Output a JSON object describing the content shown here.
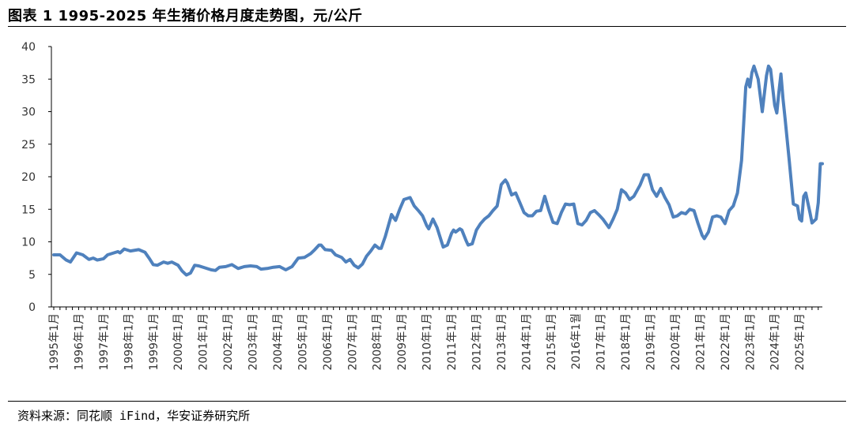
{
  "header": {
    "title": "图表 1 1995-2025 年生猪价格月度走势图，元/公斤"
  },
  "footer": {
    "source": "资料来源：同花顺 iFind，华安证券研究所"
  },
  "chart_data": {
    "type": "line",
    "title": "图表 1 1995-2025 年生猪价格月度走势图，元/公斤",
    "xlabel": "",
    "ylabel": "",
    "ylim": [
      0,
      40
    ],
    "yticks": [
      0,
      5,
      10,
      15,
      20,
      25,
      30,
      35,
      40
    ],
    "xticks": [
      "1995年1月",
      "1996年1月",
      "1997年1月",
      "1998年1月",
      "1999年1月",
      "2000年1月",
      "2001年1月",
      "2002年1月",
      "2003年1月",
      "2004年1月",
      "2005年1月",
      "2006年1月",
      "2007年1月",
      "2008年1月",
      "2009年1月",
      "2010年1月",
      "2011年1月",
      "2012年1月",
      "2013年1月",
      "2014年1月",
      "2015年1月",
      "2016年1월",
      "2017年1月",
      "2018年1月",
      "2019年1月",
      "2020年1月",
      "2021年1月",
      "2022年1月",
      "2023年1月",
      "2024年1月",
      "2025年1月"
    ],
    "xrange": [
      "1995-01",
      "2025-12"
    ],
    "grid": false,
    "legend": "none",
    "color": "#4f81bd",
    "series": [
      {
        "points": [
          [
            "1995-01",
            8.0
          ],
          [
            "1995-04",
            8.0
          ],
          [
            "1995-07",
            7.2
          ],
          [
            "1995-09",
            6.9
          ],
          [
            "1995-12",
            8.3
          ],
          [
            "1996-03",
            8.0
          ],
          [
            "1996-06",
            7.3
          ],
          [
            "1996-08",
            7.5
          ],
          [
            "1996-10",
            7.2
          ],
          [
            "1997-01",
            7.4
          ],
          [
            "1997-03",
            8.0
          ],
          [
            "1997-06",
            8.3
          ],
          [
            "1997-08",
            8.5
          ],
          [
            "1997-09",
            8.3
          ],
          [
            "1997-11",
            8.9
          ],
          [
            "1998-02",
            8.6
          ],
          [
            "1998-06",
            8.8
          ],
          [
            "1998-09",
            8.4
          ],
          [
            "1998-11",
            7.5
          ],
          [
            "1999-01",
            6.5
          ],
          [
            "1999-03",
            6.4
          ],
          [
            "1999-06",
            6.9
          ],
          [
            "1999-08",
            6.7
          ],
          [
            "1999-10",
            6.9
          ],
          [
            "2000-01",
            6.4
          ],
          [
            "2000-03",
            5.5
          ],
          [
            "2000-05",
            4.9
          ],
          [
            "2000-07",
            5.2
          ],
          [
            "2000-09",
            6.4
          ],
          [
            "2000-11",
            6.3
          ],
          [
            "2001-02",
            6.0
          ],
          [
            "2001-05",
            5.7
          ],
          [
            "2001-07",
            5.6
          ],
          [
            "2001-09",
            6.1
          ],
          [
            "2001-12",
            6.2
          ],
          [
            "2002-03",
            6.5
          ],
          [
            "2002-06",
            5.9
          ],
          [
            "2002-09",
            6.2
          ],
          [
            "2002-12",
            6.3
          ],
          [
            "2003-03",
            6.2
          ],
          [
            "2003-05",
            5.8
          ],
          [
            "2003-08",
            5.9
          ],
          [
            "2003-11",
            6.1
          ],
          [
            "2004-02",
            6.2
          ],
          [
            "2004-05",
            5.7
          ],
          [
            "2004-08",
            6.2
          ],
          [
            "2004-11",
            7.5
          ],
          [
            "2005-02",
            7.6
          ],
          [
            "2005-05",
            8.2
          ],
          [
            "2005-07",
            8.8
          ],
          [
            "2005-09",
            9.5
          ],
          [
            "2005-10",
            9.5
          ],
          [
            "2005-12",
            8.8
          ],
          [
            "2006-03",
            8.7
          ],
          [
            "2006-05",
            8.0
          ],
          [
            "2006-08",
            7.6
          ],
          [
            "2006-10",
            6.9
          ],
          [
            "2006-12",
            7.3
          ],
          [
            "2007-02",
            6.4
          ],
          [
            "2007-04",
            6.0
          ],
          [
            "2007-06",
            6.6
          ],
          [
            "2007-08",
            7.8
          ],
          [
            "2007-10",
            8.6
          ],
          [
            "2007-12",
            9.5
          ],
          [
            "2008-02",
            9.0
          ],
          [
            "2008-03",
            9.0
          ],
          [
            "2008-05",
            10.8
          ],
          [
            "2008-08",
            14.2
          ],
          [
            "2008-10",
            13.3
          ],
          [
            "2008-12",
            15.0
          ],
          [
            "2009-02",
            16.5
          ],
          [
            "2009-05",
            16.8
          ],
          [
            "2009-07",
            15.5
          ],
          [
            "2009-09",
            14.8
          ],
          [
            "2009-11",
            14.0
          ],
          [
            "2010-01",
            12.5
          ],
          [
            "2010-02",
            12.0
          ],
          [
            "2010-04",
            13.5
          ],
          [
            "2010-06",
            12.2
          ],
          [
            "2010-08",
            10.2
          ],
          [
            "2010-09",
            9.2
          ],
          [
            "2010-11",
            9.5
          ],
          [
            "2011-01",
            11.3
          ],
          [
            "2011-02",
            11.8
          ],
          [
            "2011-03",
            11.5
          ],
          [
            "2011-05",
            12.0
          ],
          [
            "2011-06",
            11.8
          ],
          [
            "2011-08",
            10.2
          ],
          [
            "2011-09",
            9.5
          ],
          [
            "2011-11",
            9.7
          ],
          [
            "2012-01",
            11.8
          ],
          [
            "2012-03",
            12.8
          ],
          [
            "2012-05",
            13.5
          ],
          [
            "2012-07",
            14.0
          ],
          [
            "2012-09",
            14.8
          ],
          [
            "2012-11",
            15.5
          ],
          [
            "2013-01",
            18.8
          ],
          [
            "2013-03",
            19.5
          ],
          [
            "2013-04",
            19.0
          ],
          [
            "2013-06",
            17.2
          ],
          [
            "2013-08",
            17.5
          ],
          [
            "2013-10",
            16.0
          ],
          [
            "2013-12",
            14.5
          ],
          [
            "2014-02",
            14.0
          ],
          [
            "2014-04",
            14.0
          ],
          [
            "2014-06",
            14.7
          ],
          [
            "2014-08",
            14.8
          ],
          [
            "2014-10",
            17.0
          ],
          [
            "2014-12",
            14.8
          ],
          [
            "2015-02",
            13.0
          ],
          [
            "2015-04",
            12.8
          ],
          [
            "2015-06",
            14.5
          ],
          [
            "2015-08",
            15.8
          ],
          [
            "2015-10",
            15.7
          ],
          [
            "2015-12",
            15.8
          ],
          [
            "2016-02",
            12.8
          ],
          [
            "2016-04",
            12.6
          ],
          [
            "2016-06",
            13.3
          ],
          [
            "2016-08",
            14.5
          ],
          [
            "2016-10",
            14.8
          ],
          [
            "2016-12",
            14.2
          ],
          [
            "2017-02",
            13.5
          ],
          [
            "2017-05",
            12.2
          ],
          [
            "2017-07",
            13.5
          ],
          [
            "2017-09",
            15.0
          ],
          [
            "2017-11",
            18.0
          ],
          [
            "2018-01",
            17.5
          ],
          [
            "2018-03",
            16.5
          ],
          [
            "2018-05",
            17.0
          ],
          [
            "2018-08",
            18.7
          ],
          [
            "2018-10",
            20.3
          ],
          [
            "2018-12",
            20.3
          ],
          [
            "2019-02",
            18.0
          ],
          [
            "2019-04",
            17.0
          ],
          [
            "2019-06",
            18.2
          ],
          [
            "2019-08",
            16.8
          ],
          [
            "2019-10",
            15.7
          ],
          [
            "2019-12",
            13.8
          ],
          [
            "2020-02",
            14.0
          ],
          [
            "2020-04",
            14.5
          ],
          [
            "2020-06",
            14.3
          ],
          [
            "2020-08",
            15.0
          ],
          [
            "2020-10",
            14.8
          ],
          [
            "2020-12",
            12.8
          ],
          [
            "2021-02",
            11.0
          ],
          [
            "2021-03",
            10.5
          ],
          [
            "2021-05",
            11.5
          ],
          [
            "2021-07",
            13.8
          ],
          [
            "2021-09",
            14.0
          ],
          [
            "2021-11",
            13.8
          ],
          [
            "2022-01",
            12.8
          ],
          [
            "2022-03",
            14.8
          ],
          [
            "2022-05",
            15.5
          ],
          [
            "2022-07",
            17.5
          ],
          [
            "2022-09",
            22.5
          ],
          [
            "2022-10",
            28.0
          ],
          [
            "2022-11",
            33.8
          ],
          [
            "2022-12",
            35.0
          ],
          [
            "2023-01",
            33.8
          ],
          [
            "2023-02",
            36.0
          ],
          [
            "2023-03",
            37.0
          ],
          [
            "2023-05",
            35.0
          ],
          [
            "2023-07",
            30.0
          ],
          [
            "2023-09",
            35.5
          ],
          [
            "2023-10",
            37.0
          ],
          [
            "2023-11",
            36.5
          ],
          [
            "2024-01",
            31.0
          ],
          [
            "2024-02",
            29.8
          ],
          [
            "2024-03",
            33.0
          ],
          [
            "2024-04",
            35.8
          ],
          [
            "2024-05",
            32.0
          ],
          [
            "2024-06",
            29.0
          ],
          [
            "2024-08",
            22.5
          ],
          [
            "2024-10",
            15.8
          ],
          [
            "2024-12",
            15.5
          ],
          [
            "2025-01",
            13.5
          ],
          [
            "2025-02",
            13.2
          ],
          [
            "2025-03",
            17.0
          ],
          [
            "2025-04",
            17.5
          ],
          [
            "2025-06",
            14.5
          ],
          [
            "2025-07",
            12.9
          ],
          [
            "2025-09",
            13.5
          ],
          [
            "2025-10",
            16.0
          ],
          [
            "2025-11",
            22.0
          ],
          [
            "2025-12",
            22.0
          ]
        ]
      }
    ]
  }
}
